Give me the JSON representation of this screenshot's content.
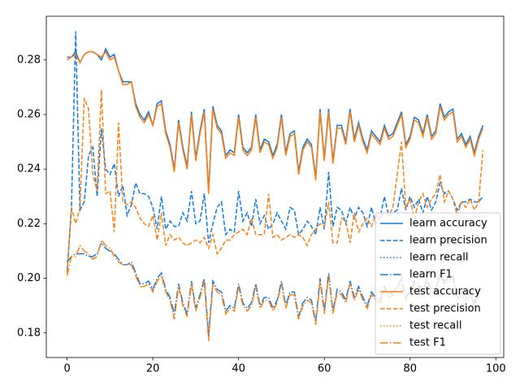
{
  "chart_data": {
    "type": "line",
    "x": [
      0,
      1,
      2,
      3,
      4,
      5,
      6,
      7,
      8,
      9,
      10,
      11,
      12,
      13,
      14,
      15,
      16,
      17,
      18,
      19,
      20,
      21,
      22,
      23,
      24,
      25,
      26,
      27,
      28,
      29,
      30,
      31,
      32,
      33,
      34,
      35,
      36,
      37,
      38,
      39,
      40,
      41,
      42,
      43,
      44,
      45,
      46,
      47,
      48,
      49,
      50,
      51,
      52,
      53,
      54,
      55,
      56,
      57,
      58,
      59,
      60,
      61,
      62,
      63,
      64,
      65,
      66,
      67,
      68,
      69,
      70,
      71,
      72,
      73,
      74,
      75,
      76,
      77,
      78,
      79,
      80,
      81,
      82,
      83,
      84,
      85,
      86,
      87,
      88,
      89,
      90,
      91,
      92,
      93,
      94,
      95,
      96,
      97
    ],
    "xlim": [
      -4.85,
      101.85
    ],
    "xticks": [
      0,
      20,
      40,
      60,
      80,
      100
    ],
    "ylim": [
      0.171,
      0.296
    ],
    "yticks": [
      {
        "value": 0.18,
        "label": "0.18"
      },
      {
        "value": 0.2,
        "label": "0.20"
      },
      {
        "value": 0.22,
        "label": "0.22"
      },
      {
        "value": 0.24,
        "label": "0.24"
      },
      {
        "value": 0.26,
        "label": "0.26"
      },
      {
        "value": 0.28,
        "label": "0.28"
      }
    ],
    "legend": "lower right",
    "series": [
      {
        "name": "learn accuracy",
        "color": "#0b7be6",
        "linestyle": "solid",
        "values": [
          0.281,
          0.281,
          0.283,
          0.279,
          0.282,
          0.283,
          0.283,
          0.282,
          0.28,
          0.284,
          0.281,
          0.282,
          0.276,
          0.272,
          0.272,
          0.272,
          0.264,
          0.26,
          0.258,
          0.261,
          0.256,
          0.264,
          0.265,
          0.254,
          0.249,
          0.24,
          0.258,
          0.248,
          0.241,
          0.261,
          0.244,
          0.254,
          0.262,
          0.232,
          0.263,
          0.256,
          0.254,
          0.245,
          0.247,
          0.246,
          0.26,
          0.248,
          0.246,
          0.248,
          0.26,
          0.247,
          0.251,
          0.25,
          0.245,
          0.249,
          0.26,
          0.246,
          0.253,
          0.254,
          0.239,
          0.248,
          0.251,
          0.249,
          0.237,
          0.262,
          0.244,
          0.262,
          0.243,
          0.256,
          0.256,
          0.25,
          0.262,
          0.251,
          0.257,
          0.251,
          0.247,
          0.254,
          0.252,
          0.25,
          0.256,
          0.252,
          0.253,
          0.257,
          0.261,
          0.249,
          0.252,
          0.259,
          0.258,
          0.253,
          0.26,
          0.252,
          0.254,
          0.264,
          0.259,
          0.261,
          0.262,
          0.251,
          0.253,
          0.249,
          0.252,
          0.246,
          0.252,
          0.256
        ]
      },
      {
        "name": "learn precision",
        "color": "#0b7be6",
        "linestyle": "dashed",
        "values": [
          0.203,
          0.225,
          0.2905,
          0.225,
          0.228,
          0.245,
          0.248,
          0.23,
          0.255,
          0.24,
          0.238,
          0.242,
          0.23,
          0.234,
          0.223,
          0.227,
          0.235,
          0.231,
          0.231,
          0.23,
          0.226,
          0.218,
          0.23,
          0.218,
          0.221,
          0.219,
          0.219,
          0.224,
          0.221,
          0.232,
          0.22,
          0.221,
          0.231,
          0.213,
          0.22,
          0.226,
          0.228,
          0.216,
          0.218,
          0.217,
          0.232,
          0.221,
          0.224,
          0.219,
          0.229,
          0.22,
          0.223,
          0.218,
          0.22,
          0.224,
          0.221,
          0.218,
          0.226,
          0.225,
          0.216,
          0.218,
          0.221,
          0.219,
          0.216,
          0.226,
          0.218,
          0.239,
          0.219,
          0.226,
          0.225,
          0.22,
          0.226,
          0.222,
          0.226,
          0.224,
          0.219,
          0.226,
          0.22,
          0.222,
          0.23,
          0.223,
          0.224,
          0.225,
          0.233,
          0.225,
          0.23,
          0.226,
          0.229,
          0.224,
          0.23,
          0.225,
          0.228,
          0.235,
          0.231,
          0.232,
          0.229,
          0.225,
          0.228,
          0.228,
          0.229,
          0.228,
          0.228,
          0.23
        ]
      },
      {
        "name": "learn recall",
        "color": "#0b7be6",
        "linestyle": "dotted",
        "values": [
          0.281,
          0.281,
          0.283,
          0.279,
          0.282,
          0.283,
          0.283,
          0.282,
          0.28,
          0.284,
          0.281,
          0.282,
          0.276,
          0.272,
          0.272,
          0.272,
          0.264,
          0.26,
          0.258,
          0.261,
          0.256,
          0.264,
          0.265,
          0.254,
          0.249,
          0.24,
          0.258,
          0.248,
          0.241,
          0.261,
          0.244,
          0.254,
          0.262,
          0.232,
          0.263,
          0.256,
          0.254,
          0.245,
          0.247,
          0.246,
          0.26,
          0.248,
          0.246,
          0.248,
          0.26,
          0.247,
          0.251,
          0.25,
          0.245,
          0.249,
          0.26,
          0.246,
          0.253,
          0.254,
          0.239,
          0.248,
          0.251,
          0.249,
          0.237,
          0.262,
          0.244,
          0.262,
          0.243,
          0.256,
          0.256,
          0.25,
          0.262,
          0.251,
          0.257,
          0.251,
          0.247,
          0.254,
          0.252,
          0.25,
          0.256,
          0.252,
          0.253,
          0.257,
          0.261,
          0.249,
          0.252,
          0.259,
          0.258,
          0.253,
          0.26,
          0.252,
          0.254,
          0.264,
          0.259,
          0.261,
          0.262,
          0.251,
          0.253,
          0.249,
          0.252,
          0.246,
          0.252,
          0.256
        ]
      },
      {
        "name": "learn F1",
        "color": "#0b7be6",
        "linestyle": "dashdot",
        "values": [
          0.206,
          0.208,
          0.209,
          0.209,
          0.209,
          0.208,
          0.208,
          0.209,
          0.213,
          0.211,
          0.21,
          0.209,
          0.207,
          0.205,
          0.205,
          0.206,
          0.202,
          0.198,
          0.198,
          0.199,
          0.196,
          0.2,
          0.202,
          0.196,
          0.193,
          0.187,
          0.198,
          0.191,
          0.187,
          0.199,
          0.189,
          0.194,
          0.2,
          0.179,
          0.199,
          0.196,
          0.195,
          0.188,
          0.19,
          0.189,
          0.198,
          0.191,
          0.189,
          0.191,
          0.198,
          0.19,
          0.193,
          0.193,
          0.189,
          0.192,
          0.199,
          0.19,
          0.195,
          0.195,
          0.186,
          0.191,
          0.193,
          0.192,
          0.184,
          0.2,
          0.188,
          0.202,
          0.188,
          0.196,
          0.195,
          0.192,
          0.199,
          0.193,
          0.197,
          0.193,
          0.19,
          0.195,
          0.193,
          0.192,
          0.197,
          0.194,
          0.195,
          0.197,
          0.2,
          0.193,
          0.195,
          0.199,
          0.198,
          0.195,
          0.2,
          0.195,
          0.196,
          0.202,
          0.199,
          0.2,
          0.201,
          0.193,
          0.195,
          0.193,
          0.195,
          0.191,
          0.195,
          0.197
        ]
      },
      {
        "name": "test accuracy",
        "color": "#ff7f0e",
        "linestyle": "solid",
        "values": [
          0.28,
          0.281,
          0.282,
          0.279,
          0.282,
          0.283,
          0.283,
          0.282,
          0.281,
          0.283,
          0.28,
          0.281,
          0.276,
          0.271,
          0.271,
          0.272,
          0.263,
          0.259,
          0.257,
          0.26,
          0.256,
          0.263,
          0.264,
          0.253,
          0.248,
          0.239,
          0.257,
          0.247,
          0.24,
          0.26,
          0.243,
          0.253,
          0.261,
          0.231,
          0.262,
          0.255,
          0.253,
          0.244,
          0.246,
          0.245,
          0.259,
          0.247,
          0.245,
          0.247,
          0.259,
          0.246,
          0.25,
          0.249,
          0.244,
          0.248,
          0.259,
          0.245,
          0.252,
          0.253,
          0.238,
          0.247,
          0.25,
          0.248,
          0.236,
          0.261,
          0.243,
          0.261,
          0.242,
          0.255,
          0.255,
          0.249,
          0.261,
          0.25,
          0.256,
          0.25,
          0.246,
          0.253,
          0.251,
          0.249,
          0.255,
          0.251,
          0.252,
          0.256,
          0.26,
          0.248,
          0.251,
          0.258,
          0.257,
          0.252,
          0.259,
          0.251,
          0.253,
          0.263,
          0.258,
          0.26,
          0.261,
          0.25,
          0.252,
          0.248,
          0.251,
          0.245,
          0.251,
          0.255
        ]
      },
      {
        "name": "test precision",
        "color": "#ff7f0e",
        "linestyle": "dashed",
        "values": [
          0.202,
          0.226,
          0.22,
          0.226,
          0.266,
          0.262,
          0.238,
          0.232,
          0.269,
          0.231,
          0.232,
          0.217,
          0.257,
          0.228,
          0.227,
          0.228,
          0.226,
          0.222,
          0.22,
          0.219,
          0.223,
          0.214,
          0.224,
          0.212,
          0.216,
          0.214,
          0.215,
          0.213,
          0.212,
          0.213,
          0.214,
          0.213,
          0.215,
          0.211,
          0.216,
          0.209,
          0.211,
          0.214,
          0.214,
          0.216,
          0.217,
          0.218,
          0.216,
          0.222,
          0.216,
          0.216,
          0.216,
          0.231,
          0.215,
          0.216,
          0.214,
          0.215,
          0.216,
          0.215,
          0.216,
          0.215,
          0.212,
          0.216,
          0.218,
          0.22,
          0.219,
          0.228,
          0.213,
          0.213,
          0.222,
          0.221,
          0.213,
          0.224,
          0.217,
          0.22,
          0.222,
          0.219,
          0.223,
          0.222,
          0.224,
          0.223,
          0.226,
          0.238,
          0.25,
          0.226,
          0.229,
          0.222,
          0.228,
          0.231,
          0.226,
          0.229,
          0.231,
          0.238,
          0.228,
          0.232,
          0.229,
          0.223,
          0.228,
          0.226,
          0.229,
          0.225,
          0.228,
          0.247
        ]
      },
      {
        "name": "test recall",
        "color": "#ff7f0e",
        "linestyle": "dotted",
        "values": [
          0.28,
          0.281,
          0.282,
          0.279,
          0.282,
          0.283,
          0.283,
          0.282,
          0.281,
          0.283,
          0.28,
          0.281,
          0.276,
          0.271,
          0.271,
          0.272,
          0.263,
          0.259,
          0.257,
          0.26,
          0.256,
          0.263,
          0.264,
          0.253,
          0.248,
          0.239,
          0.257,
          0.247,
          0.24,
          0.26,
          0.243,
          0.253,
          0.261,
          0.231,
          0.262,
          0.255,
          0.253,
          0.244,
          0.246,
          0.245,
          0.259,
          0.247,
          0.245,
          0.247,
          0.259,
          0.246,
          0.25,
          0.249,
          0.244,
          0.248,
          0.259,
          0.245,
          0.252,
          0.253,
          0.238,
          0.247,
          0.25,
          0.248,
          0.236,
          0.261,
          0.243,
          0.261,
          0.242,
          0.255,
          0.255,
          0.249,
          0.261,
          0.25,
          0.256,
          0.25,
          0.246,
          0.253,
          0.251,
          0.249,
          0.255,
          0.251,
          0.252,
          0.256,
          0.26,
          0.248,
          0.251,
          0.258,
          0.257,
          0.252,
          0.259,
          0.251,
          0.253,
          0.263,
          0.258,
          0.26,
          0.261,
          0.25,
          0.252,
          0.248,
          0.251,
          0.245,
          0.251,
          0.255
        ]
      },
      {
        "name": "test F1",
        "color": "#ff7f0e",
        "linestyle": "dashdot",
        "values": [
          0.201,
          0.208,
          0.208,
          0.212,
          0.21,
          0.209,
          0.207,
          0.208,
          0.214,
          0.212,
          0.211,
          0.208,
          0.206,
          0.205,
          0.205,
          0.205,
          0.201,
          0.197,
          0.197,
          0.198,
          0.195,
          0.199,
          0.201,
          0.195,
          0.192,
          0.185,
          0.197,
          0.19,
          0.186,
          0.198,
          0.188,
          0.193,
          0.199,
          0.177,
          0.198,
          0.195,
          0.194,
          0.187,
          0.189,
          0.188,
          0.197,
          0.19,
          0.188,
          0.19,
          0.197,
          0.189,
          0.192,
          0.192,
          0.188,
          0.191,
          0.198,
          0.189,
          0.194,
          0.194,
          0.185,
          0.19,
          0.192,
          0.191,
          0.183,
          0.199,
          0.187,
          0.201,
          0.187,
          0.195,
          0.194,
          0.191,
          0.198,
          0.192,
          0.196,
          0.192,
          0.189,
          0.194,
          0.192,
          0.191,
          0.196,
          0.193,
          0.194,
          0.196,
          0.199,
          0.192,
          0.194,
          0.198,
          0.197,
          0.194,
          0.199,
          0.194,
          0.195,
          0.201,
          0.198,
          0.199,
          0.2,
          0.192,
          0.194,
          0.192,
          0.194,
          0.19,
          0.194,
          0.196
        ]
      }
    ]
  }
}
